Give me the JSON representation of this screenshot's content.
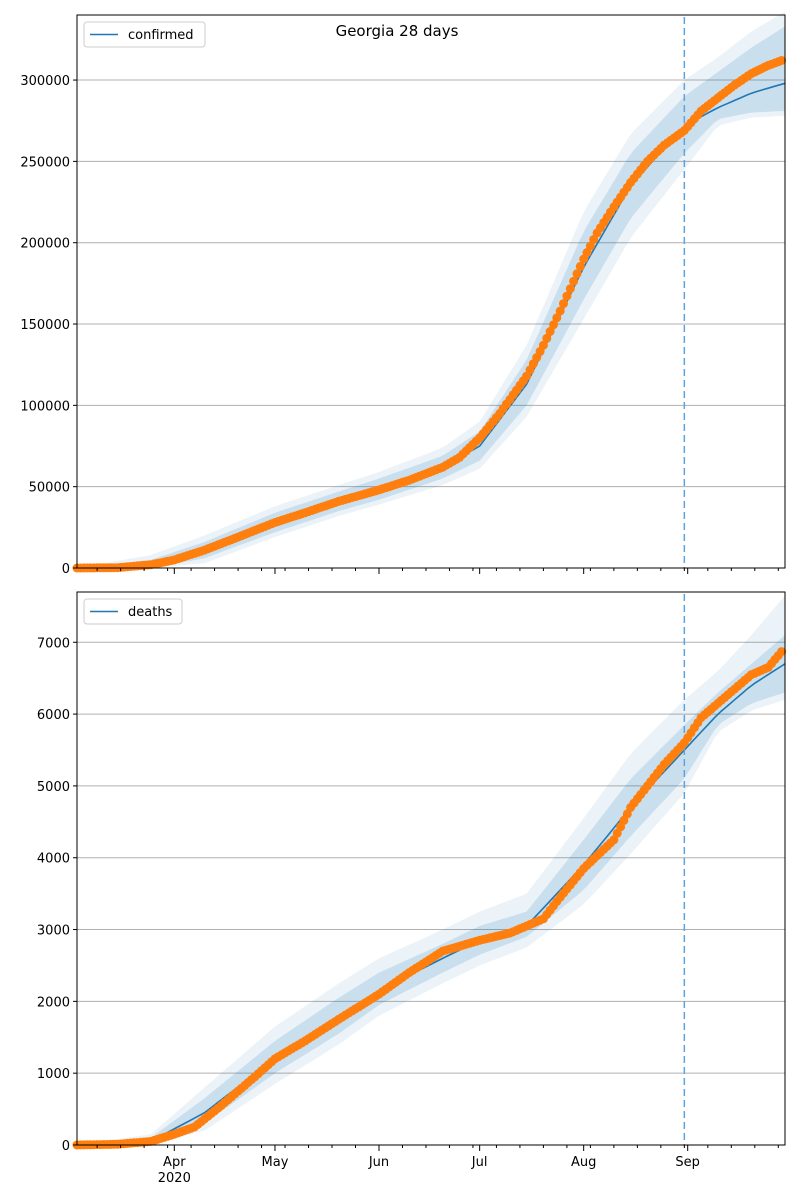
{
  "chart_data": [
    {
      "type": "line",
      "title": "Georgia 28 days",
      "series": [
        {
          "name": "confirmed",
          "kind": "model-median"
        },
        {
          "name": "",
          "kind": "observed-points"
        }
      ],
      "x_axis": {
        "start": "2020-03-03",
        "end": "2020-09-30",
        "ticks": [
          "Apr",
          "May",
          "Jun",
          "Jul",
          "Aug",
          "Sep"
        ],
        "tick_dates": [
          "2020-04-01",
          "2020-05-01",
          "2020-06-01",
          "2020-07-01",
          "2020-08-01",
          "2020-09-01"
        ],
        "year_label": "2020"
      },
      "ylim": [
        0,
        340000
      ],
      "yticks": [
        0,
        50000,
        100000,
        150000,
        200000,
        250000,
        300000
      ],
      "ytick_labels": [
        "0",
        "50000",
        "100000",
        "150000",
        "200000",
        "250000",
        "300000"
      ],
      "forecast_start": "2020-08-31",
      "legend_position": "top-left",
      "grid": "horizontal",
      "observed": {
        "dates": [
          "2020-03-03",
          "2020-03-15",
          "2020-03-25",
          "2020-04-01",
          "2020-04-10",
          "2020-04-20",
          "2020-05-01",
          "2020-05-10",
          "2020-05-20",
          "2020-06-01",
          "2020-06-10",
          "2020-06-20",
          "2020-06-25",
          "2020-07-01",
          "2020-07-07",
          "2020-07-15",
          "2020-07-20",
          "2020-07-25",
          "2020-08-01",
          "2020-08-05",
          "2020-08-10",
          "2020-08-15",
          "2020-08-20",
          "2020-08-25",
          "2020-08-31",
          "2020-09-05",
          "2020-09-10",
          "2020-09-15",
          "2020-09-20",
          "2020-09-25",
          "2020-09-29"
        ],
        "values": [
          0,
          200,
          2000,
          5000,
          11000,
          19000,
          28000,
          34000,
          41000,
          48000,
          54000,
          62000,
          68000,
          80000,
          95000,
          118000,
          137000,
          158000,
          190000,
          206000,
          222000,
          237000,
          250000,
          260000,
          269000,
          281000,
          289000,
          297000,
          304000,
          309000,
          312000
        ]
      },
      "model": {
        "dates": [
          "2020-03-03",
          "2020-03-25",
          "2020-04-10",
          "2020-05-01",
          "2020-05-20",
          "2020-06-01",
          "2020-06-20",
          "2020-07-01",
          "2020-07-15",
          "2020-08-01",
          "2020-08-15",
          "2020-08-31",
          "2020-09-10",
          "2020-09-20",
          "2020-09-30"
        ],
        "median": [
          0,
          2000,
          11000,
          28000,
          41000,
          48000,
          62000,
          75000,
          113000,
          185000,
          235000,
          272000,
          283000,
          292000,
          298000
        ],
        "bands": [
          {
            "lower": [
              0,
              0,
              6000,
              22000,
              35000,
              42000,
              55000,
              66000,
              100000,
              165000,
              215000,
              255000,
              276000,
              280000,
              281000
            ],
            "upper": [
              0,
              5000,
              16000,
              34000,
              47000,
              55000,
              69000,
              84000,
              128000,
              207000,
              255000,
              290000,
              305000,
              320000,
              333000
            ]
          },
          {
            "lower": [
              0,
              0,
              3000,
              19000,
              32000,
              39000,
              51000,
              61000,
              93000,
              153000,
              203000,
              245000,
              272000,
              277000,
              278000
            ],
            "upper": [
              0,
              8000,
              20000,
              38000,
              51000,
              59000,
              74000,
              90000,
              137000,
              219000,
              267000,
              300000,
              314000,
              330000,
              342000
            ]
          }
        ]
      }
    },
    {
      "type": "line",
      "series": [
        {
          "name": "deaths",
          "kind": "model-median"
        },
        {
          "name": "",
          "kind": "observed-points"
        }
      ],
      "x_axis": {
        "start": "2020-03-03",
        "end": "2020-09-30",
        "ticks": [
          "Apr",
          "May",
          "Jun",
          "Jul",
          "Aug",
          "Sep"
        ],
        "tick_dates": [
          "2020-04-01",
          "2020-05-01",
          "2020-06-01",
          "2020-07-01",
          "2020-08-01",
          "2020-09-01"
        ],
        "year_label": "2020"
      },
      "ylim": [
        0,
        7700
      ],
      "yticks": [
        0,
        1000,
        2000,
        3000,
        4000,
        5000,
        6000,
        7000
      ],
      "ytick_labels": [
        "0",
        "1000",
        "2000",
        "3000",
        "4000",
        "5000",
        "6000",
        "7000"
      ],
      "forecast_start": "2020-08-31",
      "legend_position": "top-left",
      "grid": "horizontal",
      "observed": {
        "dates": [
          "2020-03-03",
          "2020-03-15",
          "2020-03-25",
          "2020-04-01",
          "2020-04-07",
          "2020-04-15",
          "2020-04-25",
          "2020-05-01",
          "2020-05-10",
          "2020-05-20",
          "2020-06-01",
          "2020-06-10",
          "2020-06-20",
          "2020-07-01",
          "2020-07-10",
          "2020-07-20",
          "2020-07-25",
          "2020-08-01",
          "2020-08-10",
          "2020-08-15",
          "2020-08-20",
          "2020-08-25",
          "2020-08-31",
          "2020-09-05",
          "2020-09-10",
          "2020-09-15",
          "2020-09-20",
          "2020-09-25",
          "2020-09-29"
        ],
        "values": [
          0,
          10,
          50,
          150,
          250,
          550,
          950,
          1200,
          1450,
          1750,
          2100,
          2400,
          2700,
          2850,
          2950,
          3150,
          3450,
          3850,
          4250,
          4700,
          5000,
          5300,
          5600,
          5950,
          6150,
          6350,
          6550,
          6650,
          6870
        ]
      },
      "model": {
        "dates": [
          "2020-03-03",
          "2020-03-25",
          "2020-04-10",
          "2020-05-01",
          "2020-05-20",
          "2020-06-01",
          "2020-06-20",
          "2020-07-01",
          "2020-07-15",
          "2020-08-01",
          "2020-08-15",
          "2020-08-31",
          "2020-09-10",
          "2020-09-20",
          "2020-09-30"
        ],
        "median": [
          0,
          50,
          450,
          1200,
          1800,
          2150,
          2600,
          2850,
          3050,
          3900,
          4700,
          5500,
          6000,
          6400,
          6700
        ],
        "bands": [
          {
            "lower": [
              0,
              20,
              300,
              1000,
              1550,
              1950,
              2400,
              2650,
              2900,
              3550,
              4300,
              5100,
              5850,
              6150,
              6300
            ],
            "upper": [
              0,
              100,
              650,
              1450,
              2050,
              2400,
              2800,
              3050,
              3250,
              4250,
              5100,
              5850,
              6300,
              6700,
              7100
            ]
          },
          {
            "lower": [
              0,
              10,
              200,
              850,
              1400,
              1800,
              2250,
              2500,
              2750,
              3350,
              4050,
              4900,
              5750,
              6050,
              6200
            ],
            "upper": [
              0,
              150,
              800,
              1650,
              2250,
              2600,
              3000,
              3250,
              3500,
              4550,
              5450,
              6200,
              6600,
              7100,
              7650
            ]
          }
        ]
      }
    }
  ]
}
